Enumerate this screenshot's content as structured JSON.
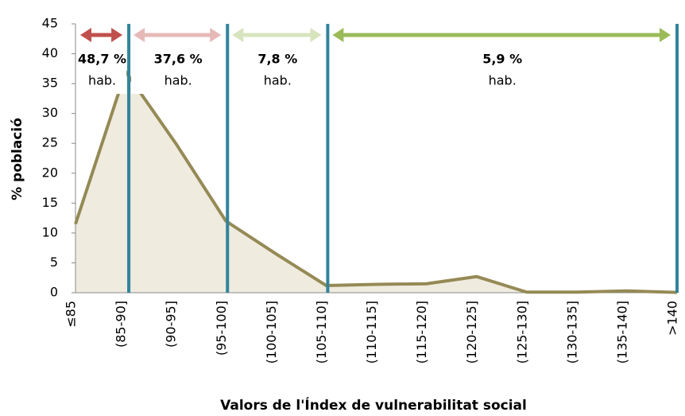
{
  "chart_data": {
    "type": "area",
    "x_label": "Valors de l'Índex de vulnerabilitat social",
    "y_label": "% població",
    "categories": [
      "≤85",
      "(85-90]",
      "(90-95]",
      "(95-100]",
      "(100-105]",
      "(105-110]",
      "(110-115]",
      "(115-120]",
      "(120-125]",
      "(125-130]",
      "(130-135]",
      "(135-140]",
      ">140"
    ],
    "series": [
      {
        "color": "#958a55",
        "fill": "#efebdf",
        "values": [
          11.5,
          37,
          25,
          12,
          6.5,
          1.2,
          1.4,
          1.5,
          2.7,
          0.1,
          0.1,
          0.3,
          0.05
        ]
      }
    ],
    "ylim": [
      0,
      45
    ],
    "yticks": [
      0,
      5,
      10,
      15,
      20,
      25,
      30,
      35,
      40,
      45
    ],
    "divider_color": "#31849b",
    "annotations": [
      {
        "label": "48,7 %",
        "unit": "hab.",
        "color": "#c0504d"
      },
      {
        "label": "37,6 %",
        "unit": "hab.",
        "color": "#e6b9b8"
      },
      {
        "label": "7,8 %",
        "unit": "hab.",
        "color": "#d7e4bd"
      },
      {
        "label": "5,9 %",
        "unit": "hab.",
        "color": "#9bbb59"
      }
    ]
  }
}
